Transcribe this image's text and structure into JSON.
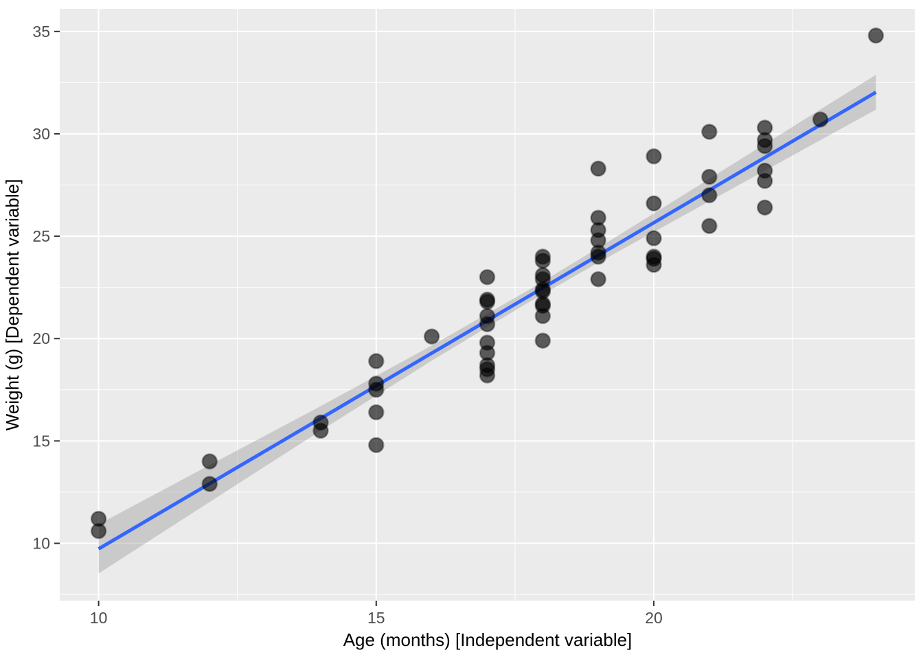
{
  "chart_data": {
    "type": "scatter",
    "title": "",
    "xlabel": "Age (months) [Independent variable]",
    "ylabel": "Weight (g) [Dependent variable]",
    "xlim": [
      9.3,
      24.7
    ],
    "ylim": [
      7.2,
      36.1
    ],
    "x_ticks": [
      10,
      15,
      20
    ],
    "y_ticks": [
      10,
      15,
      20,
      25,
      30,
      35
    ],
    "x_minor_ticks": [
      12.5,
      17.5,
      22.5
    ],
    "y_minor_ticks": [
      7.5,
      12.5,
      17.5,
      22.5,
      27.5,
      32.5
    ],
    "grid": true,
    "legend_position": "none",
    "points": [
      [
        10,
        11.2
      ],
      [
        10,
        10.6
      ],
      [
        12,
        14.0
      ],
      [
        12,
        12.9
      ],
      [
        14,
        15.9
      ],
      [
        14,
        15.5
      ],
      [
        15,
        18.9
      ],
      [
        15,
        17.8
      ],
      [
        15,
        17.5
      ],
      [
        15,
        16.4
      ],
      [
        15,
        14.8
      ],
      [
        16,
        20.1
      ],
      [
        17,
        23.0
      ],
      [
        17,
        21.9
      ],
      [
        17,
        21.8
      ],
      [
        17,
        21.1
      ],
      [
        17,
        20.7
      ],
      [
        17,
        19.8
      ],
      [
        17,
        19.3
      ],
      [
        17,
        18.7
      ],
      [
        17,
        18.5
      ],
      [
        17,
        18.2
      ],
      [
        18,
        24.0
      ],
      [
        18,
        23.8
      ],
      [
        18,
        23.1
      ],
      [
        18,
        22.9
      ],
      [
        18,
        22.4
      ],
      [
        18,
        22.3
      ],
      [
        18,
        21.7
      ],
      [
        18,
        21.6
      ],
      [
        18,
        21.1
      ],
      [
        18,
        19.9
      ],
      [
        19,
        28.3
      ],
      [
        19,
        25.9
      ],
      [
        19,
        25.3
      ],
      [
        19,
        24.8
      ],
      [
        19,
        24.2
      ],
      [
        19,
        24.0
      ],
      [
        19,
        22.9
      ],
      [
        20,
        28.9
      ],
      [
        20,
        26.6
      ],
      [
        20,
        24.9
      ],
      [
        20,
        24.0
      ],
      [
        20,
        23.9
      ],
      [
        20,
        23.6
      ],
      [
        21,
        30.1
      ],
      [
        21,
        27.9
      ],
      [
        21,
        27.0
      ],
      [
        21,
        25.5
      ],
      [
        22,
        30.3
      ],
      [
        22,
        29.7
      ],
      [
        22,
        29.4
      ],
      [
        22,
        28.2
      ],
      [
        22,
        27.7
      ],
      [
        22,
        26.4
      ],
      [
        23,
        30.7
      ],
      [
        24,
        34.8
      ]
    ],
    "regression_line": {
      "x1": 10,
      "y1": 9.73,
      "x2": 24,
      "y2": 32.03
    },
    "ci_band": {
      "x": [
        10,
        12,
        14,
        16,
        17.7,
        19,
        20,
        22,
        24
      ],
      "upper": [
        10.93,
        13.82,
        16.7,
        19.66,
        22.3,
        24.43,
        26.11,
        29.5,
        32.88
      ],
      "lower": [
        8.53,
        12.02,
        15.5,
        18.92,
        21.7,
        23.71,
        25.21,
        28.2,
        31.18
      ]
    },
    "colors": {
      "panel_bg": "#EBEBEB",
      "grid": "#FFFFFF",
      "point": "#000000",
      "line": "#3366FF",
      "band": "#999999",
      "tick_text": "#4D4D4D",
      "axis_title": "#000000",
      "tick_mark": "#333333"
    }
  }
}
